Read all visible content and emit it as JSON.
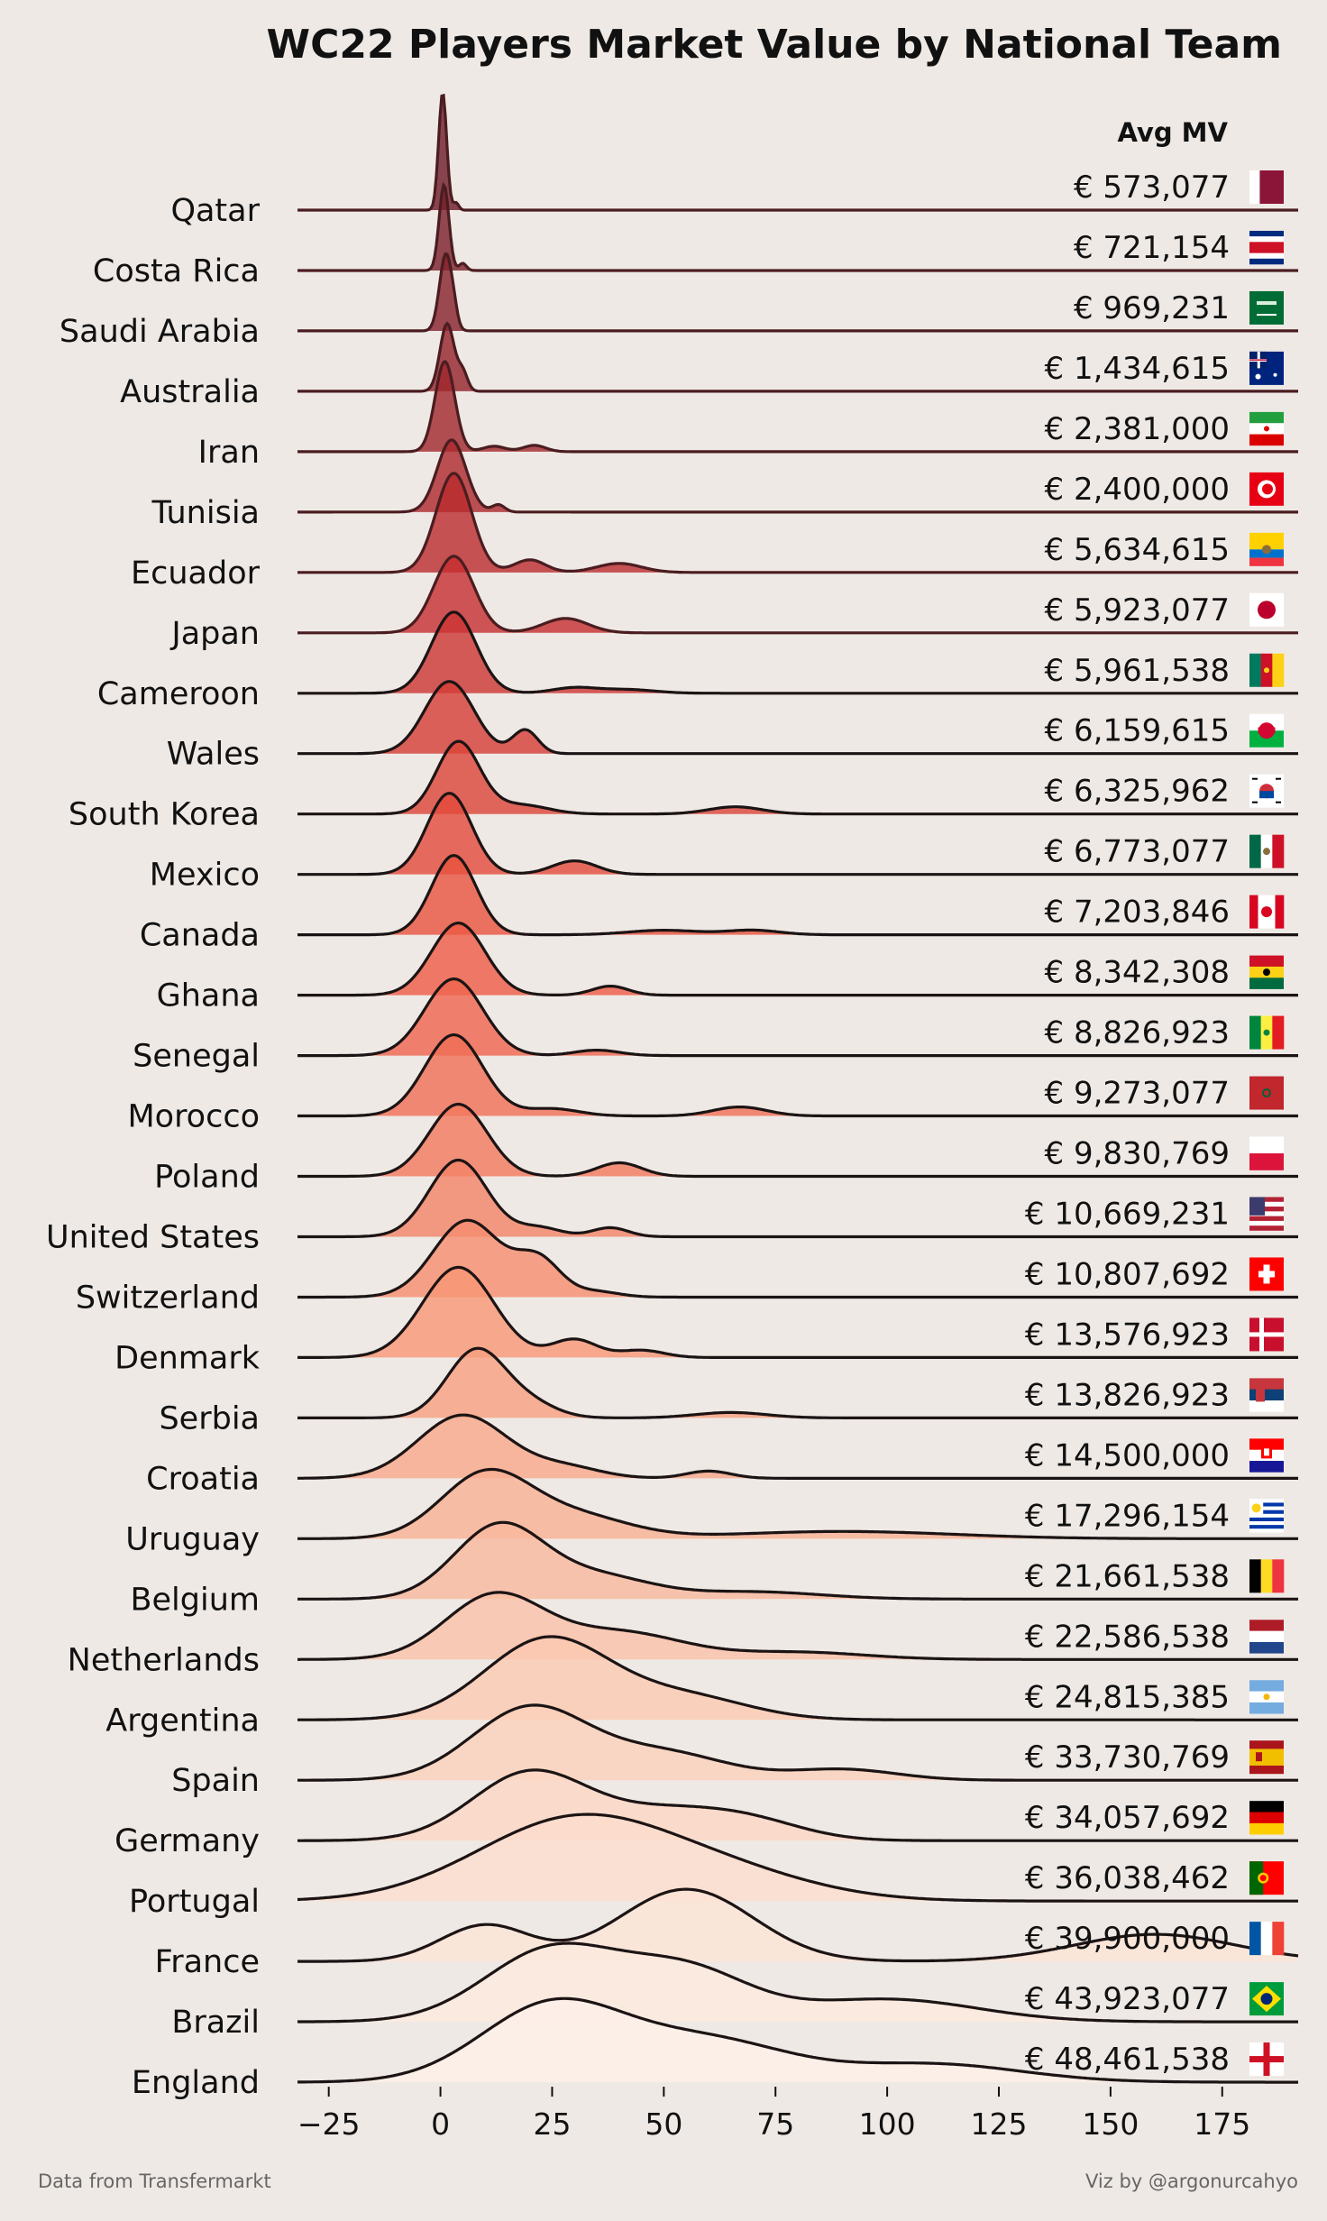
{
  "chart_data": {
    "type": "ridgeline",
    "title": "WC22 Players Market Value by National Team",
    "value_column_header": "Avg MV",
    "x_ticks": [
      -25,
      0,
      25,
      50,
      75,
      100,
      125,
      150,
      175
    ],
    "x_tick_labels": [
      "−25",
      "0",
      "25",
      "50",
      "75",
      "100",
      "125",
      "150",
      "175"
    ],
    "xlim": [
      -32,
      192
    ],
    "footer_left": "Data from Transfermarkt",
    "footer_right": "Viz by @argonurcahyo",
    "teams": [
      {
        "name": "Qatar",
        "avg_mv": "€ 573,077",
        "flag": "qatar-flag"
      },
      {
        "name": "Costa Rica",
        "avg_mv": "€ 721,154",
        "flag": "costa-rica-flag"
      },
      {
        "name": "Saudi Arabia",
        "avg_mv": "€ 969,231",
        "flag": "saudi-arabia-flag"
      },
      {
        "name": "Australia",
        "avg_mv": "€ 1,434,615",
        "flag": "australia-flag"
      },
      {
        "name": "Iran",
        "avg_mv": "€ 2,381,000",
        "flag": "iran-flag"
      },
      {
        "name": "Tunisia",
        "avg_mv": "€ 2,400,000",
        "flag": "tunisia-flag"
      },
      {
        "name": "Ecuador",
        "avg_mv": "€ 5,634,615",
        "flag": "ecuador-flag"
      },
      {
        "name": "Japan",
        "avg_mv": "€ 5,923,077",
        "flag": "japan-flag"
      },
      {
        "name": "Cameroon",
        "avg_mv": "€ 5,961,538",
        "flag": "cameroon-flag"
      },
      {
        "name": "Wales",
        "avg_mv": "€ 6,159,615",
        "flag": "wales-flag"
      },
      {
        "name": "South Korea",
        "avg_mv": "€ 6,325,962",
        "flag": "south-korea-flag"
      },
      {
        "name": "Mexico",
        "avg_mv": "€ 6,773,077",
        "flag": "mexico-flag"
      },
      {
        "name": "Canada",
        "avg_mv": "€ 7,203,846",
        "flag": "canada-flag"
      },
      {
        "name": "Ghana",
        "avg_mv": "€ 8,342,308",
        "flag": "ghana-flag"
      },
      {
        "name": "Senegal",
        "avg_mv": "€ 8,826,923",
        "flag": "senegal-flag"
      },
      {
        "name": "Morocco",
        "avg_mv": "€ 9,273,077",
        "flag": "morocco-flag"
      },
      {
        "name": "Poland",
        "avg_mv": "€ 9,830,769",
        "flag": "poland-flag"
      },
      {
        "name": "United States",
        "avg_mv": "€ 10,669,231",
        "flag": "united-states-flag"
      },
      {
        "name": "Switzerland",
        "avg_mv": "€ 10,807,692",
        "flag": "switzerland-flag"
      },
      {
        "name": "Denmark",
        "avg_mv": "€ 13,576,923",
        "flag": "denmark-flag"
      },
      {
        "name": "Serbia",
        "avg_mv": "€ 13,826,923",
        "flag": "serbia-flag"
      },
      {
        "name": "Croatia",
        "avg_mv": "€ 14,500,000",
        "flag": "croatia-flag"
      },
      {
        "name": "Uruguay",
        "avg_mv": "€ 17,296,154",
        "flag": "uruguay-flag"
      },
      {
        "name": "Belgium",
        "avg_mv": "€ 21,661,538",
        "flag": "belgium-flag"
      },
      {
        "name": "Netherlands",
        "avg_mv": "€ 22,586,538",
        "flag": "netherlands-flag"
      },
      {
        "name": "Argentina",
        "avg_mv": "€ 24,815,385",
        "flag": "argentina-flag"
      },
      {
        "name": "Spain",
        "avg_mv": "€ 33,730,769",
        "flag": "spain-flag"
      },
      {
        "name": "Germany",
        "avg_mv": "€ 34,057,692",
        "flag": "germany-flag"
      },
      {
        "name": "Portugal",
        "avg_mv": "€ 36,038,462",
        "flag": "portugal-flag"
      },
      {
        "name": "France",
        "avg_mv": "€ 39,900,000",
        "flag": "france-flag"
      },
      {
        "name": "Brazil",
        "avg_mv": "€ 43,923,077",
        "flag": "brazil-flag"
      },
      {
        "name": "England",
        "avg_mv": "€ 48,461,538",
        "flag": "england-flag"
      }
    ]
  }
}
